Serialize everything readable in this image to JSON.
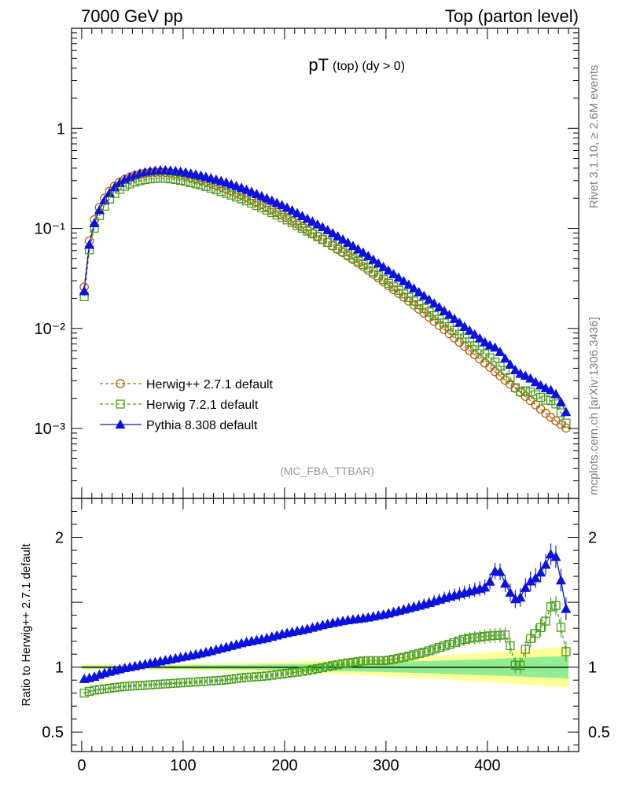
{
  "header": {
    "left": "7000 GeV pp",
    "right": "Top (parton level)"
  },
  "side_labels": {
    "rivet": "Rivet 3.1.10, ≥ 2.6M events",
    "mcplots": "mcplots.cern.ch [arXiv:1306.3436]"
  },
  "chart_data": {
    "type": "line",
    "title_main": "pT",
    "title_sub": "(top) (dy > 0)",
    "analysis_tag": "(MC_FBA_TTBAR)",
    "x_ticks": [
      "0",
      "100",
      "200",
      "300",
      "400"
    ],
    "xlim": [
      -10,
      490
    ],
    "main": {
      "yscale": "log",
      "ylim": [
        0.0002,
        10
      ],
      "y_ticks": [
        {
          "value": 1,
          "label": "1"
        },
        {
          "value": 0.1,
          "label": "10⁻¹"
        },
        {
          "value": 0.01,
          "label": "10⁻²"
        },
        {
          "value": 0.001,
          "label": "10⁻³"
        }
      ]
    },
    "ratio": {
      "ylabel": "Ratio to Herwig++ 2.7.1 default",
      "ylim": [
        0.35,
        2.3
      ],
      "y_ticks": [
        {
          "value": 2,
          "label": "2"
        },
        {
          "value": 1,
          "label": "1"
        },
        {
          "value": 0.5,
          "label": "0.5"
        }
      ]
    },
    "legend": {
      "placement": "bottom-left",
      "entries": [
        {
          "name": "Herwig++ 2.7.1 default",
          "color": "#b8600f",
          "marker": "open-circle",
          "style": "dashed"
        },
        {
          "name": "Herwig 7.2.1 default",
          "color": "#4a9e1e",
          "marker": "open-square",
          "style": "dashed"
        },
        {
          "name": "Pythia 8.308 default",
          "color": "#0b11e0",
          "marker": "filled-triangle",
          "style": "solid"
        }
      ]
    },
    "series": [
      {
        "name": "Herwig++ 2.7.1 default",
        "anchors_x": [
          2.5,
          7.5,
          12.5,
          17.5,
          22.5,
          27.5,
          32.5,
          37.5,
          42.5,
          47.5,
          55,
          65,
          75,
          80,
          90,
          100,
          120,
          140,
          160,
          180,
          200,
          220,
          240,
          260,
          280,
          300,
          320,
          340,
          360,
          380,
          400,
          420,
          440,
          460,
          477.5
        ],
        "anchors_y": [
          0.026,
          0.075,
          0.122,
          0.162,
          0.2,
          0.235,
          0.265,
          0.29,
          0.31,
          0.325,
          0.345,
          0.36,
          0.365,
          0.365,
          0.355,
          0.34,
          0.3,
          0.255,
          0.21,
          0.168,
          0.132,
          0.1,
          0.075,
          0.055,
          0.04,
          0.028,
          0.0197,
          0.0136,
          0.0093,
          0.0063,
          0.0043,
          0.0029,
          0.002,
          0.00135,
          0.00101
        ]
      },
      {
        "name": "Herwig 7.2.1 default",
        "ratio_anchors_x": [
          2.5,
          10,
          20,
          40,
          60,
          80,
          100,
          120,
          140,
          160,
          180,
          200,
          220,
          240,
          260,
          280,
          300,
          320,
          340,
          360,
          380,
          400,
          420,
          425,
          430,
          440,
          450,
          460,
          465,
          470,
          477.5
        ],
        "ratio_anchors_y": [
          0.8,
          0.82,
          0.83,
          0.85,
          0.86,
          0.87,
          0.88,
          0.89,
          0.9,
          0.92,
          0.93,
          0.95,
          0.97,
          1.0,
          1.03,
          1.05,
          1.05,
          1.08,
          1.12,
          1.17,
          1.22,
          1.24,
          1.25,
          1.08,
          0.95,
          1.2,
          1.28,
          1.38,
          1.55,
          1.4,
          1.12
        ]
      },
      {
        "name": "Pythia 8.308 default",
        "ratio_anchors_x": [
          2.5,
          10,
          20,
          40,
          60,
          80,
          100,
          120,
          140,
          160,
          180,
          200,
          220,
          240,
          260,
          280,
          300,
          320,
          340,
          360,
          380,
          400,
          410,
          420,
          430,
          440,
          450,
          460,
          465,
          470,
          477.5
        ],
        "ratio_anchors_y": [
          0.91,
          0.92,
          0.95,
          0.99,
          1.02,
          1.05,
          1.08,
          1.11,
          1.15,
          1.19,
          1.22,
          1.26,
          1.29,
          1.33,
          1.36,
          1.38,
          1.41,
          1.45,
          1.49,
          1.54,
          1.58,
          1.62,
          1.78,
          1.6,
          1.5,
          1.65,
          1.7,
          1.82,
          1.92,
          1.78,
          1.45
        ]
      }
    ],
    "ratio_reference_band": {
      "inner_color": "#90ee90",
      "outer_color": "#ffff99"
    }
  }
}
